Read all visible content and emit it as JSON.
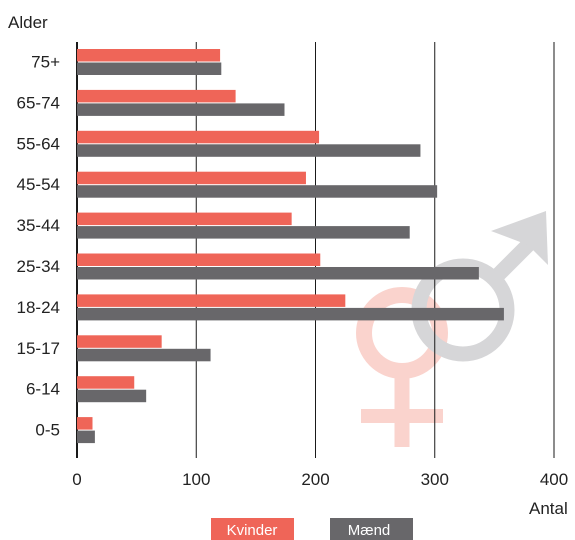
{
  "chart_data": {
    "type": "bar",
    "orientation": "horizontal",
    "ylabel": "Alder",
    "xlabel": "Antal",
    "xlim": [
      0,
      400
    ],
    "xticks": [
      0,
      100,
      200,
      300,
      400
    ],
    "categories": [
      "75+",
      "65-74",
      "55-64",
      "45-54",
      "35-44",
      "25-34",
      "18-24",
      "15-17",
      "6-14",
      "0-5"
    ],
    "series": [
      {
        "name": "Kvinder",
        "color": "#EF6558",
        "values": [
          120,
          133,
          203,
          192,
          180,
          204,
          225,
          71,
          48,
          13
        ]
      },
      {
        "name": "Mænd",
        "color": "#68676A",
        "values": [
          121,
          174,
          288,
          302,
          279,
          337,
          358,
          112,
          58,
          15
        ]
      }
    ],
    "grid": "vertical lines at x ticks",
    "legend": "bottom",
    "decoration": {
      "female_symbol_color": "#FAD3CD",
      "male_symbol_color": "#D6D6D8"
    }
  }
}
